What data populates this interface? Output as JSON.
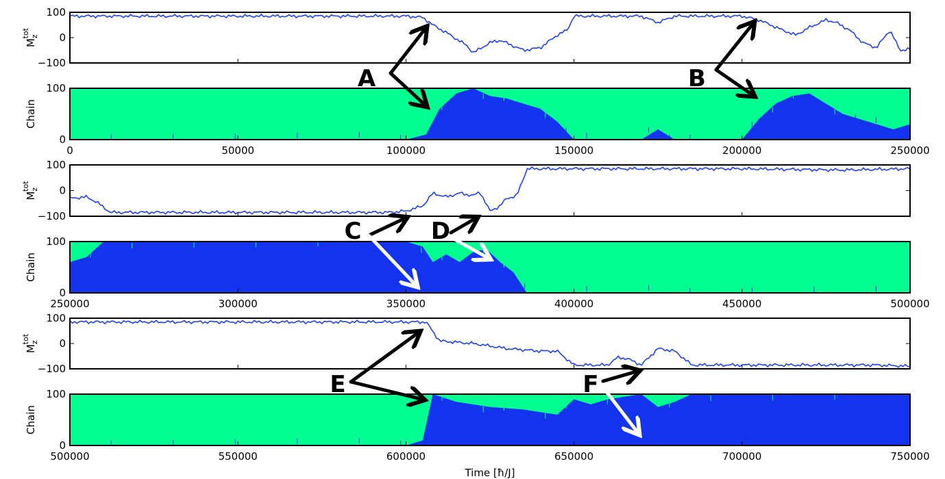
{
  "chart_data": {
    "type": "line",
    "xlabel": "Time [ħ/J]",
    "colors": {
      "magnetization": "#1f3ff0",
      "chain_up": "#00ff90",
      "chain_down": "#1433ee"
    },
    "rows": [
      {
        "xlim": [
          0,
          250000
        ],
        "xticks": [
          "0",
          "50000",
          "100000",
          "150000",
          "200000",
          "250000"
        ],
        "mag": {
          "ylabel": "M_z^tot",
          "ylim": [
            -100,
            100
          ],
          "yticks": [
            "100",
            "0",
            "−100"
          ],
          "x": [
            0,
            20000,
            40000,
            60000,
            80000,
            100000,
            105000,
            108000,
            112000,
            118000,
            120000,
            125000,
            128000,
            135000,
            140000,
            145000,
            148000,
            150000,
            160000,
            170000,
            175000,
            180000,
            190000,
            200000,
            205000,
            212000,
            216000,
            220000,
            225000,
            228000,
            232000,
            236000,
            240000,
            244000,
            247000,
            250000
          ],
          "y": [
            85,
            85,
            85,
            85,
            85,
            85,
            80,
            50,
            20,
            -30,
            -60,
            -20,
            -10,
            -50,
            -40,
            10,
            30,
            85,
            85,
            85,
            60,
            85,
            85,
            85,
            70,
            30,
            10,
            40,
            70,
            60,
            30,
            -20,
            -40,
            30,
            -50,
            -45
          ]
        },
        "chain": {
          "ylabel": "Chain",
          "ylim": [
            0,
            100
          ],
          "yticks": [
            "100",
            "0"
          ],
          "x": [
            0,
            100000,
            106000,
            110000,
            115000,
            120000,
            125000,
            130000,
            135000,
            140000,
            145000,
            150000,
            160000,
            170000,
            175000,
            180000,
            200000,
            205000,
            210000,
            215000,
            220000,
            225000,
            230000,
            235000,
            240000,
            245000,
            250000
          ],
          "blue_fraction": [
            0,
            0,
            10,
            60,
            90,
            100,
            85,
            80,
            70,
            60,
            35,
            0,
            0,
            0,
            20,
            0,
            0,
            40,
            70,
            85,
            90,
            70,
            50,
            40,
            30,
            20,
            30
          ]
        },
        "annotations": [
          {
            "label": "A",
            "arrows": [
              "magnetization",
              "chain"
            ],
            "arrow_color": "black"
          },
          {
            "label": "B",
            "arrows": [
              "magnetization",
              "chain"
            ],
            "arrow_color": "black"
          }
        ]
      },
      {
        "xlim": [
          250000,
          500000
        ],
        "xticks": [
          "250000",
          "300000",
          "350000",
          "400000",
          "450000",
          "500000"
        ],
        "mag": {
          "ylabel": "M_z^tot",
          "ylim": [
            -100,
            100
          ],
          "yticks": [
            "100",
            "0",
            "−100"
          ],
          "x": [
            250000,
            255000,
            258000,
            262000,
            300000,
            345000,
            350000,
            355000,
            358000,
            362000,
            366000,
            370000,
            372000,
            375000,
            378000,
            380000,
            383000,
            386000,
            390000,
            420000,
            450000,
            480000,
            500000
          ],
          "y": [
            -30,
            -25,
            -45,
            -85,
            -85,
            -85,
            -80,
            -60,
            -10,
            -25,
            -10,
            -20,
            -5,
            -80,
            -60,
            -30,
            -20,
            85,
            85,
            85,
            85,
            80,
            85
          ]
        },
        "chain": {
          "ylabel": "Chain",
          "ylim": [
            0,
            100
          ],
          "yticks": [
            "100",
            "0"
          ],
          "x": [
            250000,
            255000,
            260000,
            265000,
            300000,
            350000,
            355000,
            358000,
            362000,
            366000,
            370000,
            374000,
            378000,
            382000,
            386000,
            390000,
            500000
          ],
          "blue_fraction": [
            60,
            70,
            100,
            100,
            100,
            100,
            90,
            60,
            75,
            60,
            80,
            85,
            60,
            40,
            0,
            0,
            0
          ]
        },
        "annotations": [
          {
            "label": "C",
            "arrows": [
              "magnetization",
              "chain"
            ],
            "arrow_color": "black/white"
          },
          {
            "label": "D",
            "arrows": [
              "magnetization",
              "chain"
            ],
            "arrow_color": "black/white"
          }
        ]
      },
      {
        "xlim": [
          500000,
          750000
        ],
        "xticks": [
          "500000",
          "550000",
          "600000",
          "650000",
          "700000",
          "750000"
        ],
        "mag": {
          "ylabel": "M_z^tot",
          "ylim": [
            -100,
            100
          ],
          "yticks": [
            "100",
            "0",
            "−100"
          ],
          "x": [
            500000,
            550000,
            580000,
            600000,
            606000,
            610000,
            620000,
            630000,
            640000,
            645000,
            650000,
            660000,
            663000,
            666000,
            670000,
            675000,
            680000,
            685000,
            700000,
            720000,
            740000,
            750000
          ],
          "y": [
            85,
            85,
            85,
            85,
            85,
            10,
            0,
            -20,
            -30,
            -30,
            -85,
            -85,
            -55,
            -60,
            -85,
            -20,
            -30,
            -85,
            -85,
            -85,
            -85,
            -90
          ]
        },
        "chain": {
          "ylabel": "Chain",
          "ylim": [
            0,
            100
          ],
          "yticks": [
            "100",
            "0"
          ],
          "x": [
            500000,
            600000,
            605000,
            608000,
            615000,
            625000,
            635000,
            645000,
            650000,
            655000,
            660000,
            665000,
            670000,
            675000,
            680000,
            685000,
            700000,
            750000
          ],
          "blue_fraction": [
            0,
            0,
            10,
            100,
            85,
            75,
            70,
            60,
            90,
            80,
            90,
            95,
            100,
            75,
            85,
            100,
            100,
            100
          ]
        },
        "annotations": [
          {
            "label": "E",
            "arrows": [
              "magnetization",
              "chain"
            ],
            "arrow_color": "black"
          },
          {
            "label": "F",
            "arrows": [
              "magnetization",
              "chain"
            ],
            "arrow_color": "black/white"
          }
        ]
      }
    ]
  }
}
